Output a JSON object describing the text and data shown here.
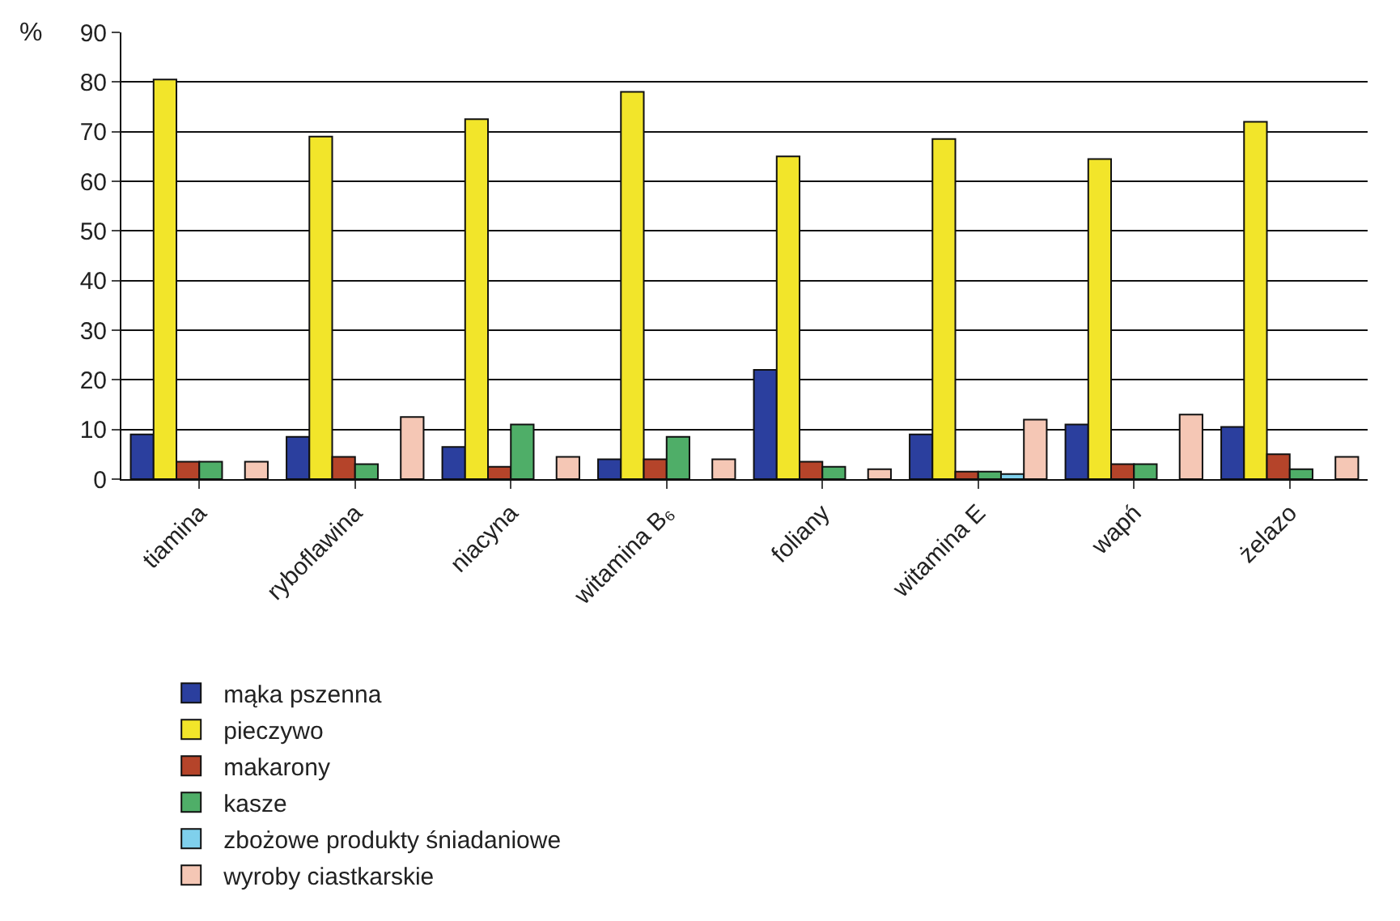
{
  "chart_data": {
    "type": "bar",
    "ylabel": "%",
    "categories": [
      "tiamina",
      "ryboflawina",
      "niacyna",
      "witamina B₆",
      "foliany",
      "witamina E",
      "wapń",
      "żelazo"
    ],
    "series": [
      {
        "name": "mąka pszenna",
        "color": "#2b3f9e",
        "values": [
          9,
          8.5,
          6.5,
          4,
          22,
          9,
          11,
          10.5
        ]
      },
      {
        "name": "pieczywo",
        "color": "#f2e52a",
        "values": [
          80.5,
          69,
          72.5,
          78,
          65,
          68.5,
          64.5,
          72
        ]
      },
      {
        "name": "makarony",
        "color": "#b5442a",
        "values": [
          3.5,
          4.5,
          2.5,
          4,
          3.5,
          1.5,
          3,
          5
        ]
      },
      {
        "name": "kasze",
        "color": "#4fae68",
        "values": [
          3.5,
          3,
          11,
          8.5,
          2.5,
          1.5,
          3,
          2
        ]
      },
      {
        "name": "zbożowe produkty śniadaniowe",
        "color": "#7fd0ec",
        "values": [
          null,
          null,
          null,
          null,
          null,
          1,
          null,
          null
        ]
      },
      {
        "name": "wyroby ciastkarskie",
        "color": "#f5c7b5",
        "values": [
          3.5,
          12.5,
          4.5,
          4,
          2,
          12,
          13,
          4.5
        ]
      }
    ],
    "ylim": [
      0,
      90
    ],
    "yticks": [
      0,
      10,
      20,
      30,
      40,
      50,
      60,
      70,
      80,
      90
    ],
    "grid": "y",
    "legend": "bottom"
  }
}
